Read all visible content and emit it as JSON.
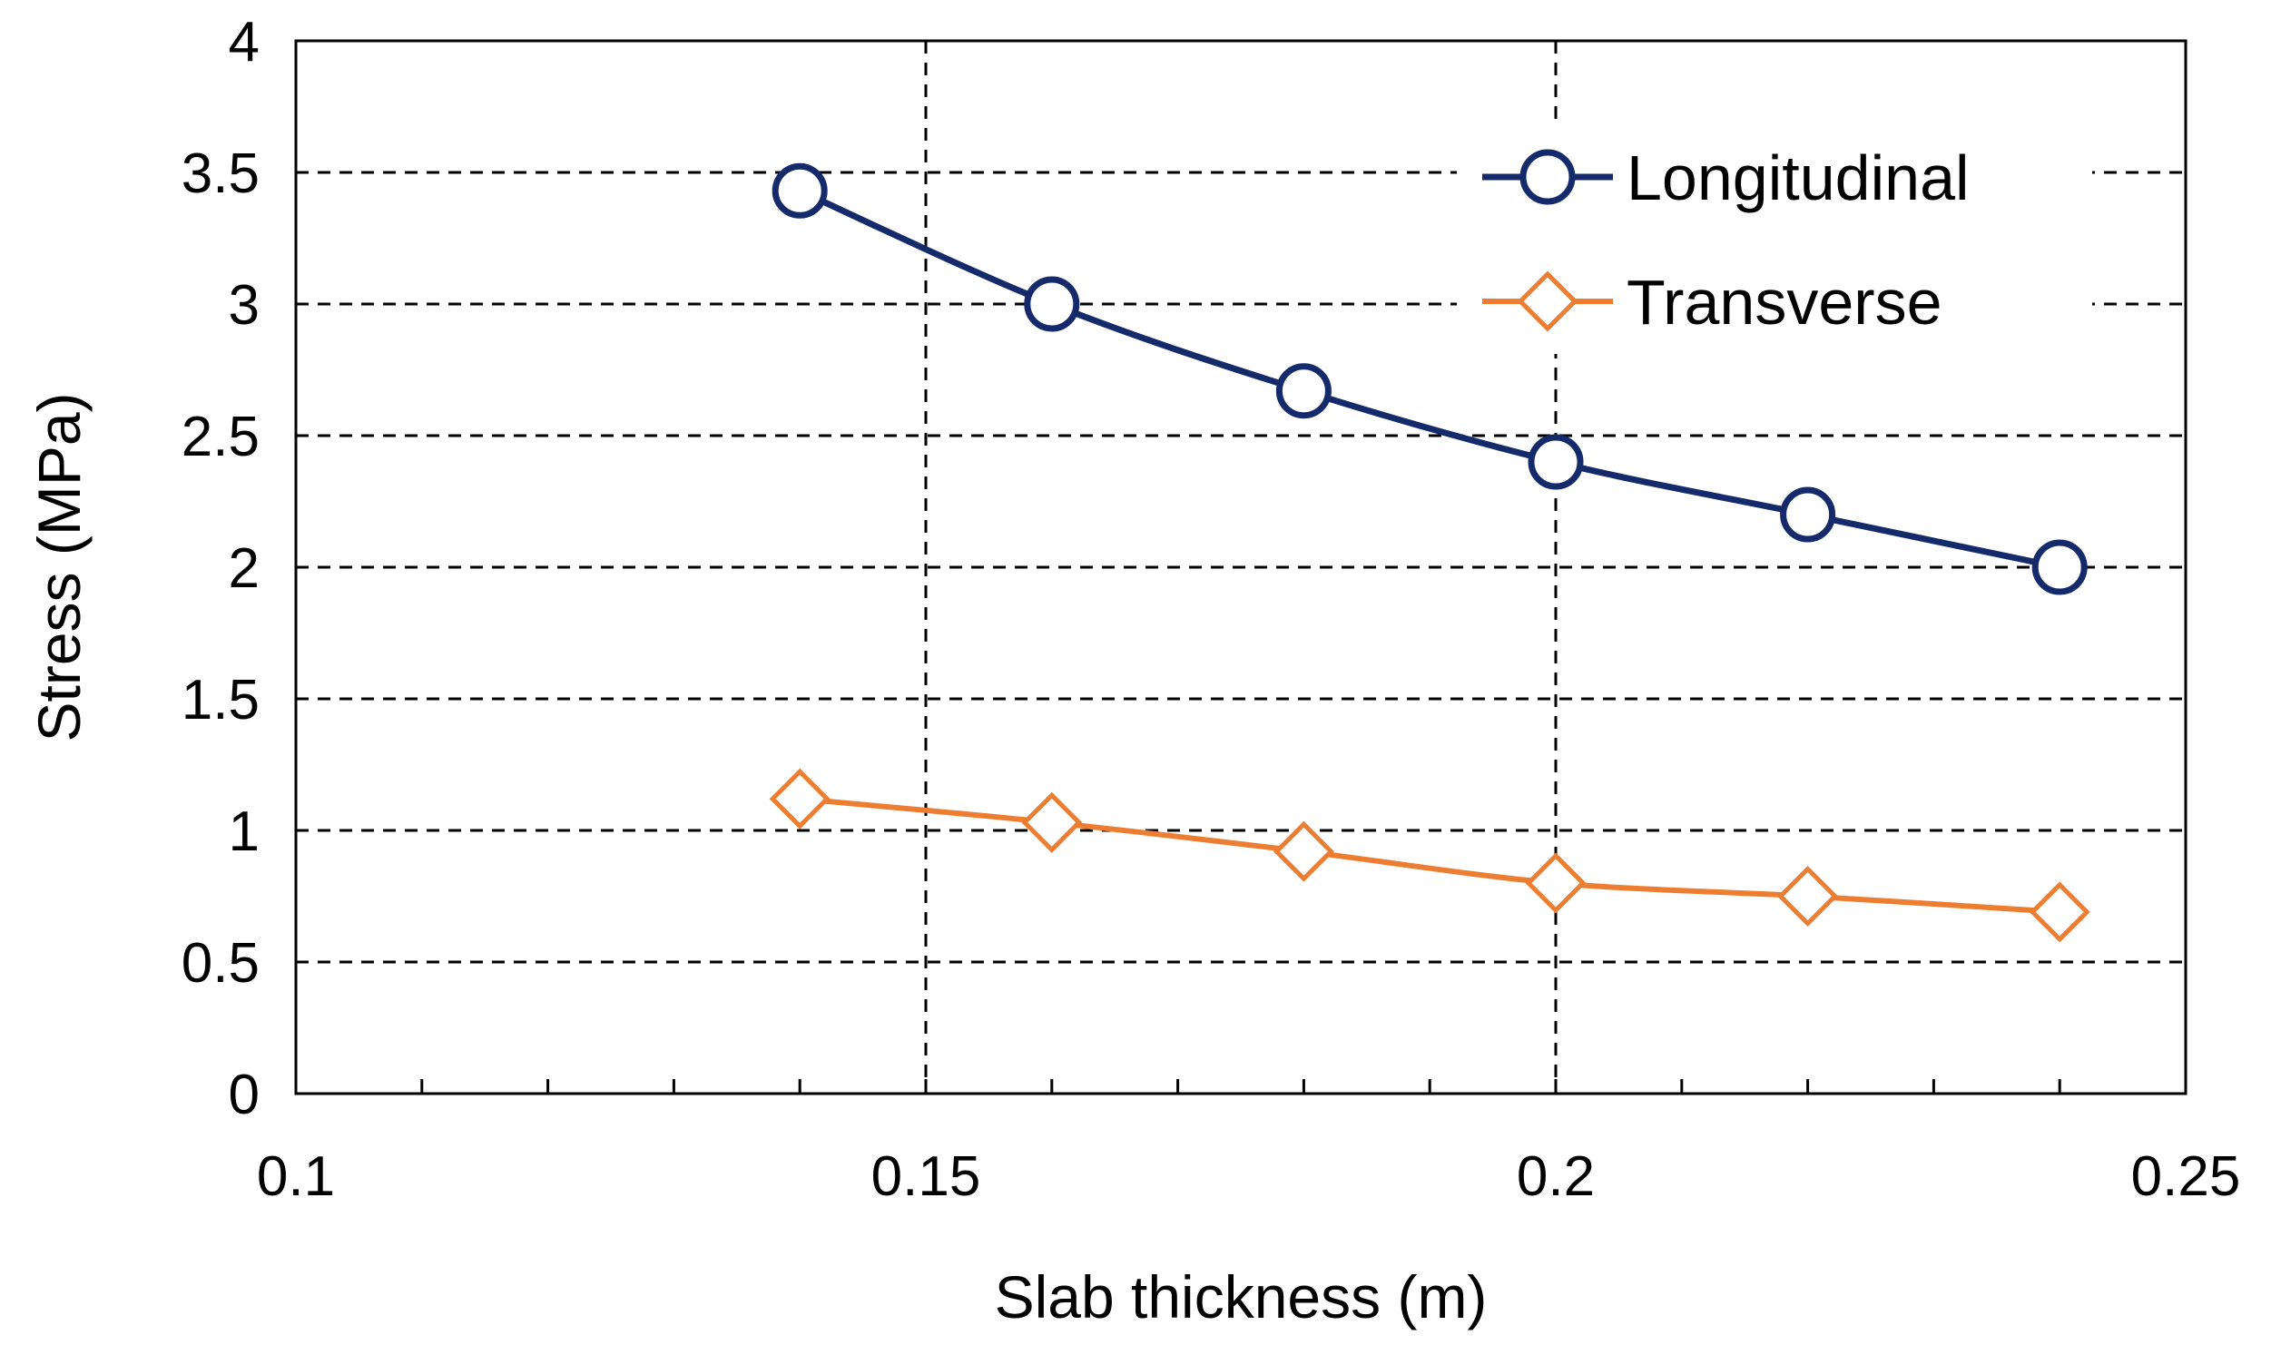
{
  "chart_data": {
    "type": "line",
    "title": "",
    "xlabel": "Slab thickness (m)",
    "ylabel": "Stress (MPa)",
    "xlim": [
      0.1,
      0.25
    ],
    "ylim": [
      0,
      4
    ],
    "xticks": [
      0.1,
      0.15,
      0.2,
      0.25
    ],
    "xtick_labels": [
      "0.1",
      "0.15",
      "0.2",
      "0.25"
    ],
    "x_minor_step": 0.01,
    "yticks": [
      0,
      0.5,
      1,
      1.5,
      2,
      2.5,
      3,
      3.5,
      4
    ],
    "ytick_labels": [
      "0",
      "0.5",
      "1",
      "1.5",
      "2",
      "2.5",
      "3",
      "3.5",
      "4"
    ],
    "grid": true,
    "legend_position": "top-right",
    "x": [
      0.14,
      0.16,
      0.18,
      0.2,
      0.22,
      0.24
    ],
    "series": [
      {
        "name": "Longitudinal",
        "marker": "circle",
        "color": "#142a6b",
        "values": [
          3.43,
          3.0,
          2.67,
          2.4,
          2.2,
          2.0
        ]
      },
      {
        "name": "Transverse",
        "marker": "diamond",
        "color": "#ed7d31",
        "values": [
          1.12,
          1.03,
          0.92,
          0.8,
          0.75,
          0.69
        ]
      }
    ]
  }
}
